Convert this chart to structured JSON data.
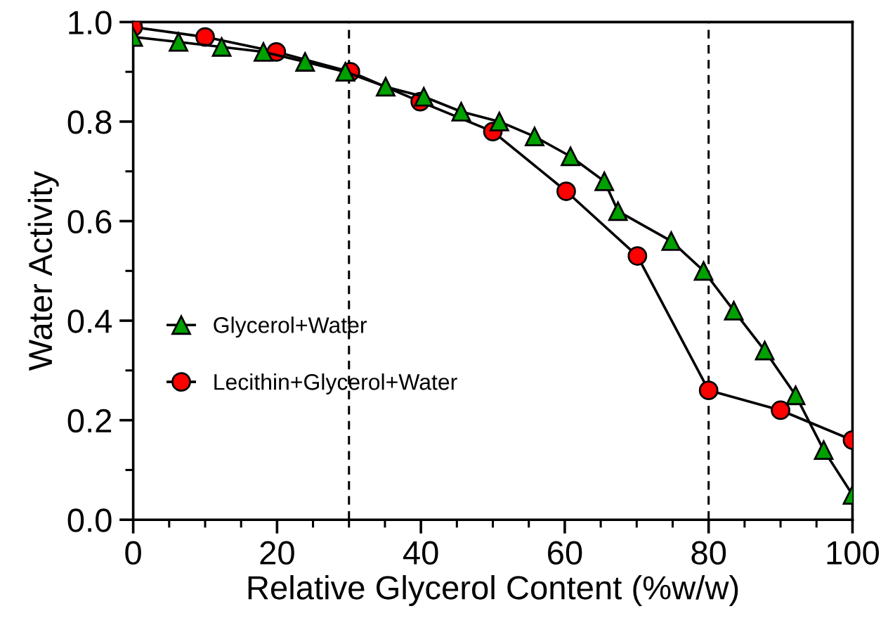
{
  "chart_data": {
    "type": "line",
    "xlabel": "Relative Glycerol Content (%w/w)",
    "ylabel": "Water Activity",
    "xlim": [
      0,
      100
    ],
    "xticks": [
      0,
      20,
      40,
      60,
      80,
      100
    ],
    "ylim": [
      0,
      1
    ],
    "yticks": [
      {
        "value": 0,
        "label": "0.0"
      },
      {
        "value": 0.2,
        "label": "0.2"
      },
      {
        "value": 0.4,
        "label": "0.4"
      },
      {
        "value": 0.6,
        "label": "0.6"
      },
      {
        "value": 0.8,
        "label": "0.8"
      },
      {
        "value": 1,
        "label": "1.0"
      }
    ],
    "grid": false,
    "legend": "left",
    "series": [
      {
        "name": "Glycerol+Water",
        "color": "#00a000",
        "marker": "triangle",
        "x": [
          0,
          6.3,
          12.3,
          18.1,
          23.9,
          29.5,
          35.1,
          40.4,
          45.6,
          50.9,
          55.8,
          60.8,
          65.5,
          67.4,
          74.8,
          79.3,
          83.5,
          87.8,
          92.1,
          96.0,
          100
        ],
        "values": [
          0.97,
          0.96,
          0.95,
          0.94,
          0.92,
          0.9,
          0.87,
          0.85,
          0.82,
          0.8,
          0.77,
          0.73,
          0.68,
          0.62,
          0.56,
          0.5,
          0.42,
          0.34,
          0.25,
          0.14,
          0.05
        ]
      },
      {
        "name": "Lecithin+Glycerol+Water",
        "color": "#ff0000",
        "marker": "circle",
        "x": [
          0,
          10,
          19.9,
          30.2,
          39.9,
          50,
          60.2,
          70.1,
          80,
          90,
          100
        ],
        "values": [
          0.99,
          0.97,
          0.94,
          0.9,
          0.84,
          0.78,
          0.66,
          0.53,
          0.26,
          0.22,
          0.16
        ]
      }
    ],
    "ref_lines": [
      {
        "axis": "x",
        "value": 30,
        "line_style": "dashed",
        "color": "#000000"
      },
      {
        "axis": "x",
        "value": 80,
        "line_style": "dashed",
        "color": "#000000"
      }
    ]
  }
}
